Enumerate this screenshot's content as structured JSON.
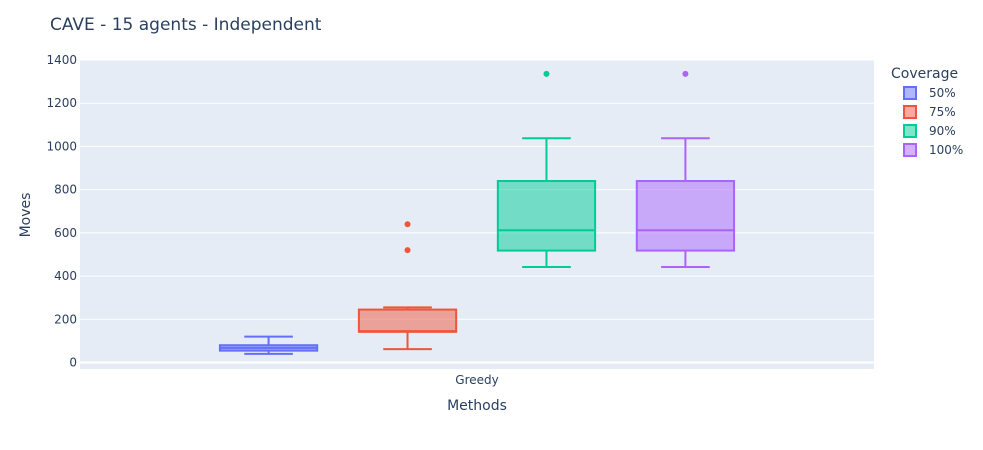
{
  "chart_data": {
    "type": "box",
    "title": "CAVE - 15 agents - Independent",
    "xlabel": "Methods",
    "ylabel": "Moves",
    "categories": [
      "Greedy"
    ],
    "ylim": [
      -30,
      1400
    ],
    "yticks": [
      0,
      200,
      400,
      600,
      800,
      1000,
      1200,
      1400
    ],
    "grid": true,
    "legend": {
      "title": "Coverage",
      "placement": "right"
    },
    "series": [
      {
        "name": "50%",
        "color": "#636efa",
        "min": 40,
        "q1": 55,
        "median": 68,
        "q3": 80,
        "max": 120,
        "outliers": []
      },
      {
        "name": "75%",
        "color": "#ef553b",
        "min": 62,
        "q1": 142,
        "median": 145,
        "q3": 245,
        "max": 255,
        "outliers": [
          520,
          640
        ]
      },
      {
        "name": "90%",
        "color": "#00cc96",
        "min": 442,
        "q1": 518,
        "median": 612,
        "q3": 840,
        "max": 1038,
        "outliers": [
          1336
        ]
      },
      {
        "name": "100%",
        "color": "#ab63fa",
        "min": 442,
        "q1": 518,
        "median": 612,
        "q3": 840,
        "max": 1038,
        "outliers": [
          1336
        ]
      }
    ]
  }
}
